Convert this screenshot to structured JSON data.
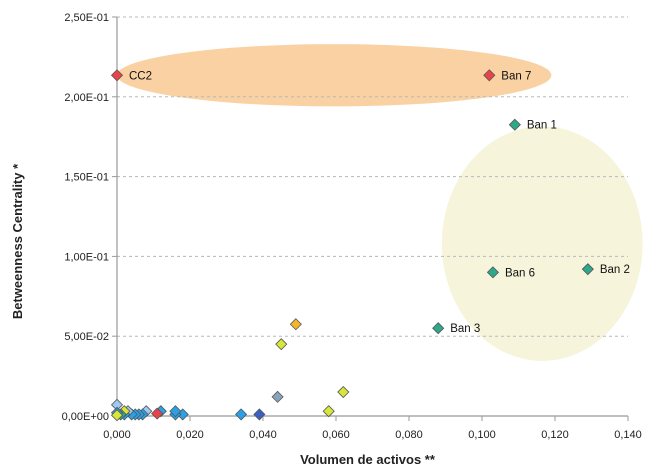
{
  "chart_data": {
    "type": "scatter",
    "title": "",
    "xlabel": "Volumen de activos **",
    "ylabel": "Betweenness Centrality *",
    "xlim": [
      0,
      0.14
    ],
    "ylim": [
      0,
      0.25
    ],
    "x_ticks": [
      0,
      0.02,
      0.04,
      0.06,
      0.08,
      0.1,
      0.12,
      0.14
    ],
    "x_tick_labels": [
      "0,000",
      "0,020",
      "0,040",
      "0,060",
      "0,080",
      "0,100",
      "0,120",
      "0,140"
    ],
    "y_ticks": [
      0,
      0.05,
      0.1,
      0.15,
      0.2,
      0.25
    ],
    "y_tick_labels": [
      "0,00E+00",
      "5,00E-02",
      "1,00E-01",
      "1,50E-01",
      "2,00E-01",
      "2,50E-01"
    ],
    "grid": "horizontal dashed",
    "highlights": [
      {
        "shape": "ellipse",
        "cx": 0.0595,
        "cy": 0.2135,
        "rx": 0.0595,
        "ry": 0.0195,
        "color": "#f9d1a3"
      },
      {
        "shape": "ellipse",
        "cx": 0.1165,
        "cy": 0.108,
        "rx": 0.0275,
        "ry": 0.0735,
        "color": "#f6f5dc"
      }
    ],
    "points": [
      {
        "x": 0.0,
        "y": 0.2135,
        "label": "CC2",
        "color": "#e8434a"
      },
      {
        "x": 0.102,
        "y": 0.2135,
        "label": "Ban 7",
        "color": "#e8434a"
      },
      {
        "x": 0.109,
        "y": 0.1825,
        "label": "Ban 1",
        "color": "#2ea88a"
      },
      {
        "x": 0.129,
        "y": 0.092,
        "label": "Ban 2",
        "color": "#2ea88a"
      },
      {
        "x": 0.103,
        "y": 0.09,
        "label": "Ban 6",
        "color": "#2ea88a"
      },
      {
        "x": 0.088,
        "y": 0.055,
        "label": "Ban 3",
        "color": "#2ea88a"
      },
      {
        "x": 0.049,
        "y": 0.0575,
        "label": "",
        "color": "#f2b728"
      },
      {
        "x": 0.045,
        "y": 0.045,
        "label": "",
        "color": "#d8e63a"
      },
      {
        "x": 0.062,
        "y": 0.015,
        "label": "",
        "color": "#d8e63a"
      },
      {
        "x": 0.058,
        "y": 0.003,
        "label": "",
        "color": "#d8e63a"
      },
      {
        "x": 0.044,
        "y": 0.012,
        "label": "",
        "color": "#8aa3bd"
      },
      {
        "x": 0.039,
        "y": 0.001,
        "label": "",
        "color": "#3a5fc4"
      },
      {
        "x": 0.034,
        "y": 0.001,
        "label": "",
        "color": "#2aa1e6"
      },
      {
        "x": 0.018,
        "y": 0.001,
        "label": "",
        "color": "#2aa1e6"
      },
      {
        "x": 0.016,
        "y": 0.001,
        "label": "",
        "color": "#2aa1e6"
      },
      {
        "x": 0.016,
        "y": 0.003,
        "label": "",
        "color": "#2aa1e6"
      },
      {
        "x": 0.012,
        "y": 0.003,
        "label": "",
        "color": "#2aa1e6"
      },
      {
        "x": 0.011,
        "y": 0.0015,
        "label": "",
        "color": "#e8434a"
      },
      {
        "x": 0.008,
        "y": 0.003,
        "label": "",
        "color": "#9ec9f2"
      },
      {
        "x": 0.007,
        "y": 0.001,
        "label": "",
        "color": "#2aa1e6"
      },
      {
        "x": 0.006,
        "y": 0.001,
        "label": "",
        "color": "#2aa1e6"
      },
      {
        "x": 0.005,
        "y": 0.001,
        "label": "",
        "color": "#2aa1e6"
      },
      {
        "x": 0.004,
        "y": 0.001,
        "label": "",
        "color": "#2aa1e6"
      },
      {
        "x": 0.003,
        "y": 0.003,
        "label": "",
        "color": "#9ec9f2"
      },
      {
        "x": 0.002,
        "y": 0.001,
        "label": "",
        "color": "#2aa1e6"
      },
      {
        "x": 0.002,
        "y": 0.003,
        "label": "",
        "color": "#d8e63a"
      },
      {
        "x": 0.001,
        "y": 0.001,
        "label": "",
        "color": "#2ea88a"
      },
      {
        "x": 0.0,
        "y": 0.007,
        "label": "",
        "color": "#9ec9f2"
      },
      {
        "x": 0.0,
        "y": 0.002,
        "label": "",
        "color": "#2aa1e6"
      },
      {
        "x": 0.0,
        "y": 0.0005,
        "label": "",
        "color": "#d8e63a"
      }
    ]
  }
}
